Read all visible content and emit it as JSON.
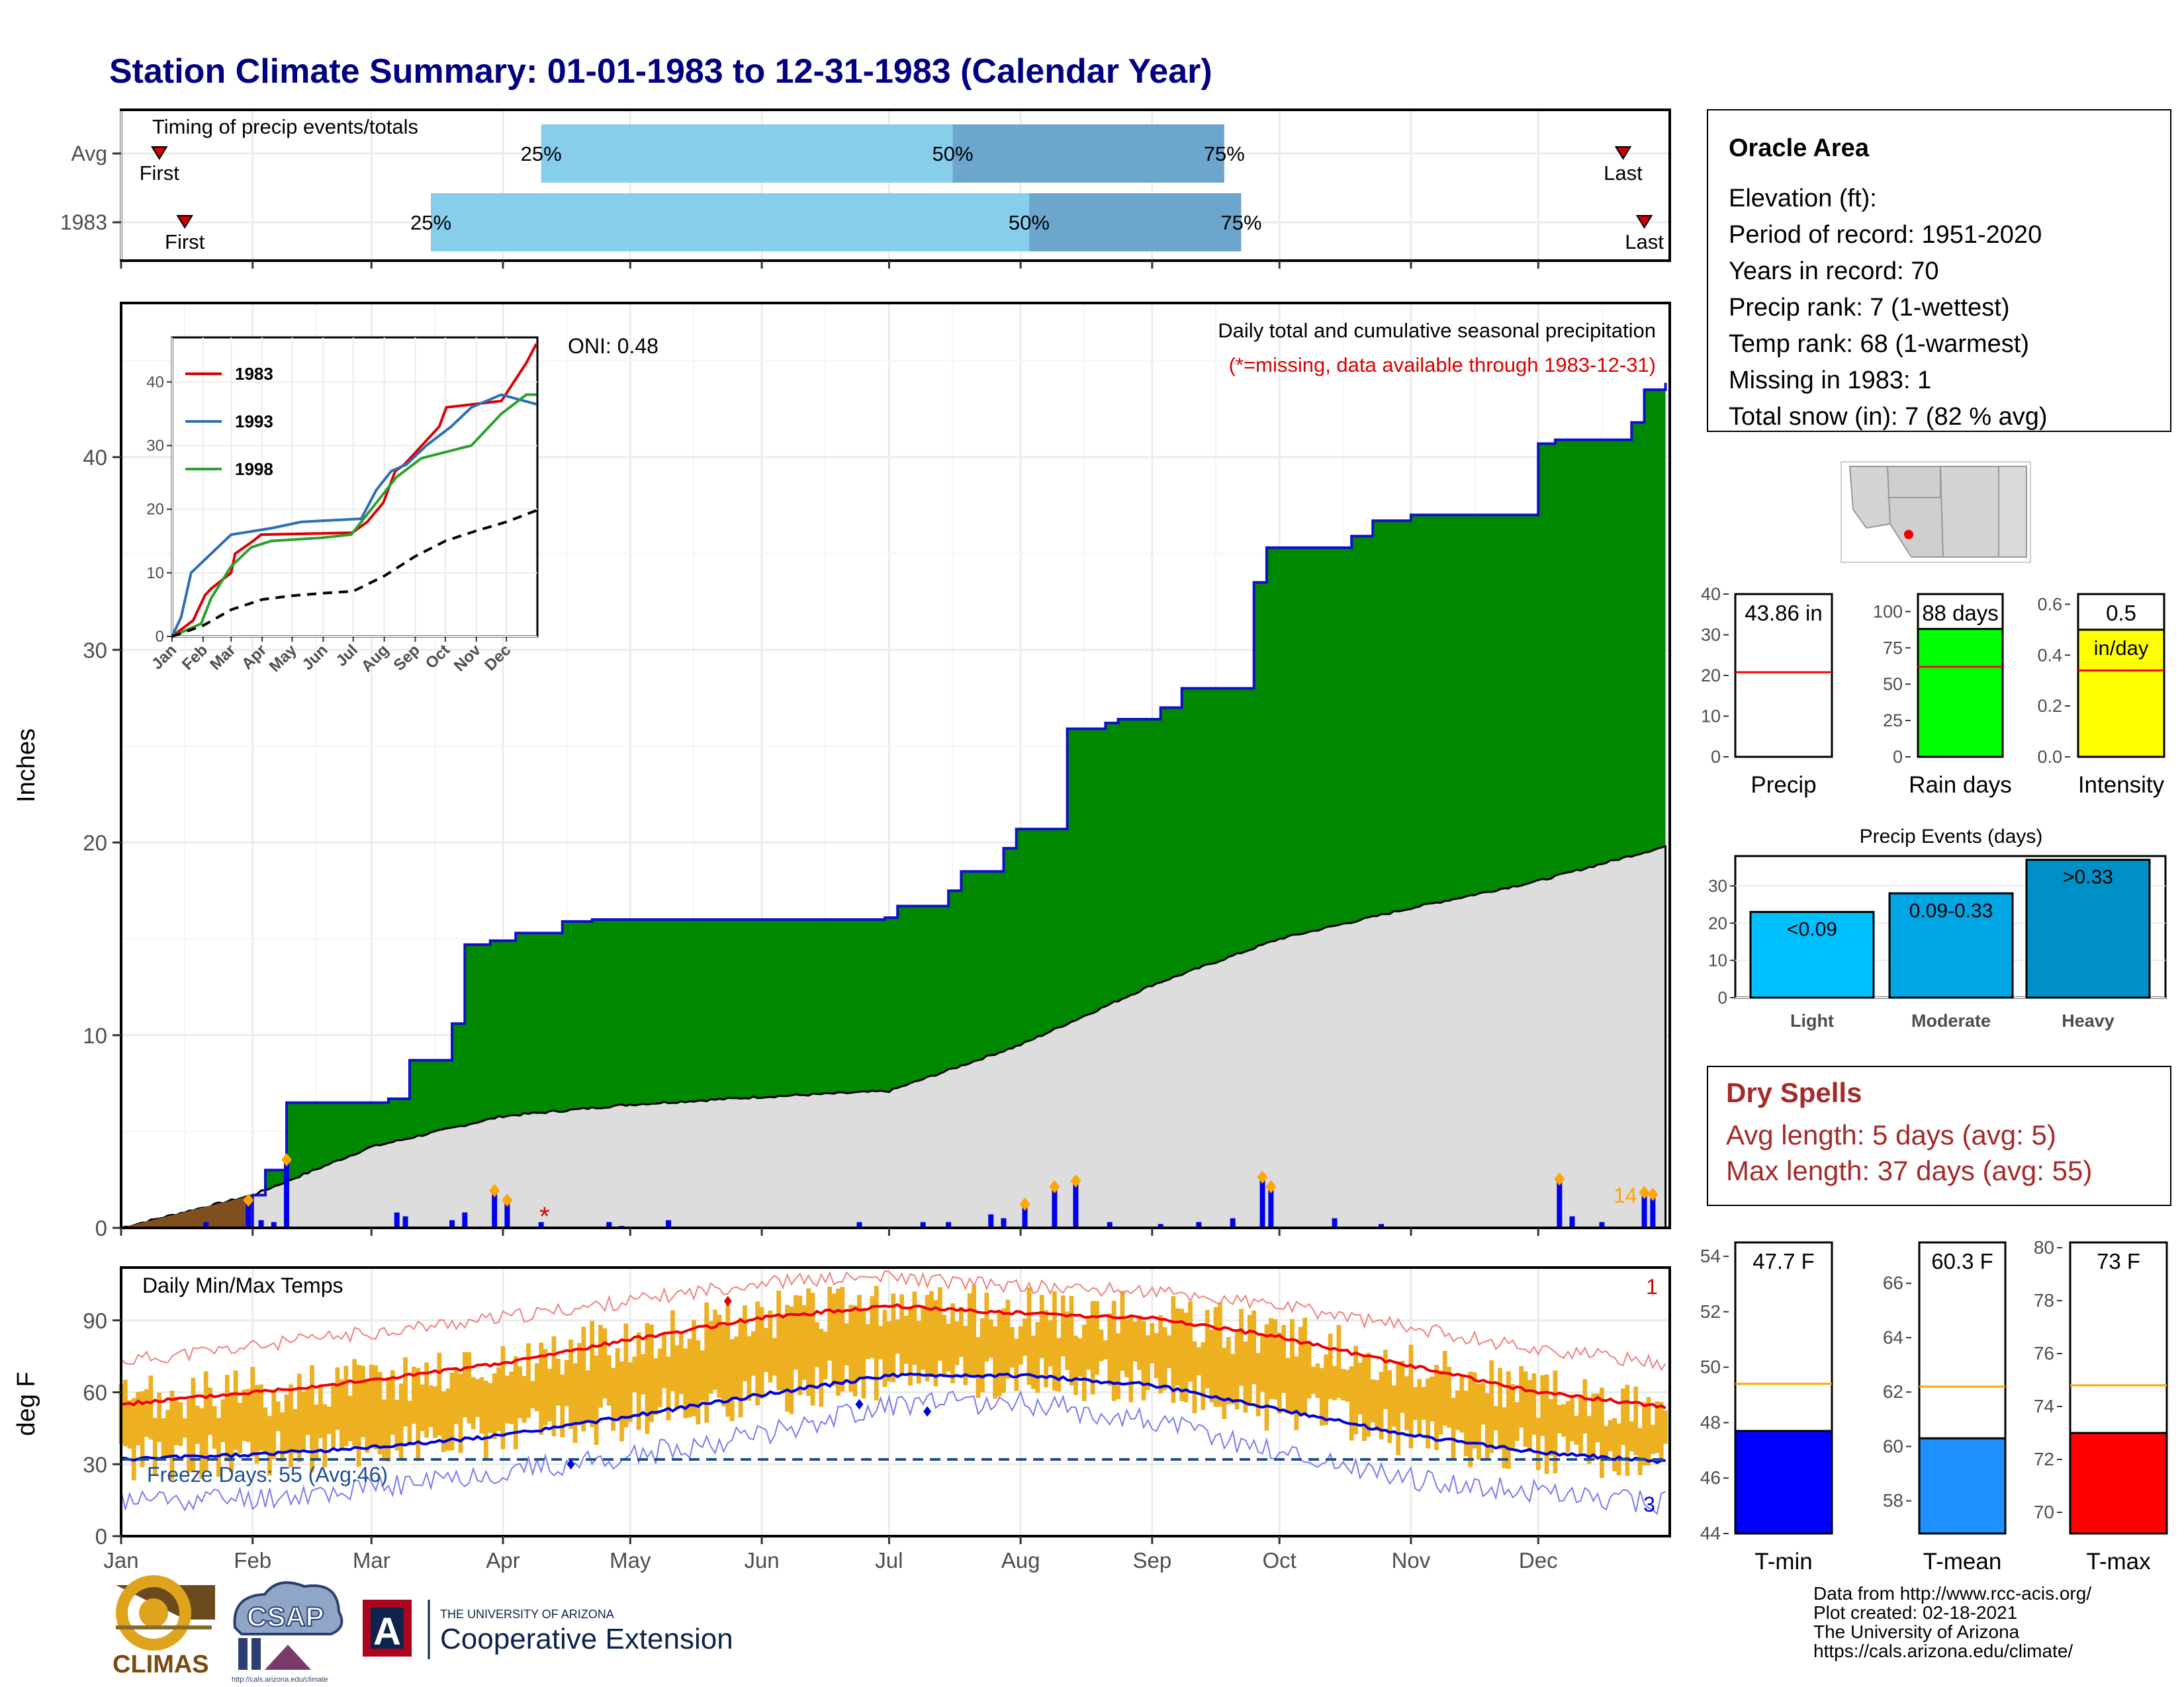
{
  "page": {
    "title": "Station Climate Summary: 01-01-1983 to 12-31-1983 (Calendar Year)",
    "title_color": "#000080"
  },
  "timing": {
    "title": "Timing of precip events/totals",
    "rows": [
      {
        "label": "Avg",
        "first_day": 10,
        "q25_day": 100,
        "q50_day": 197,
        "q75_day": 261,
        "last_day": 355,
        "first_label": "First",
        "last_label": "Last",
        "q25_label": "25%",
        "q50_label": "50%",
        "q75_label": "75%"
      },
      {
        "label": "1983",
        "first_day": 16,
        "q25_day": 74,
        "q50_day": 215,
        "q75_day": 265,
        "last_day": 360,
        "first_label": "First",
        "last_label": "Last",
        "q25_label": "25%",
        "q50_label": "50%",
        "q75_label": "75%"
      }
    ],
    "colors": {
      "light": "#87CEEB",
      "dark": "#6CA6CD",
      "marker": "#CC0000"
    }
  },
  "info": {
    "station": "Oracle Area",
    "lines": [
      "Elevation (ft):",
      "Period of record: 1951-2020",
      "Years in record: 70",
      "Precip rank: 7 (1-wettest)",
      "Temp rank: 68 (1-warmest)",
      "Missing in 1983: 1",
      "Total snow (in): 7 (82 % avg)"
    ]
  },
  "precip_panel": {
    "ylabel": "Inches",
    "oni": "ONI: 0.48",
    "note1": "Daily total and cumulative seasonal precipitation",
    "note2": "(*=missing, data available through 1983-12-31)",
    "count_label": "14",
    "missing_marker": "*",
    "colors": {
      "cum": "#008800",
      "avg": "#DDDDDD",
      "line": "#1010CC",
      "snow": "#7F4F1F",
      "daily": "#0000EE",
      "diamond": "#FFA500",
      "note2": "#DD0000"
    }
  },
  "inset": {
    "series": [
      {
        "name": "1983",
        "color": "#DD0000"
      },
      {
        "name": "1993",
        "color": "#2C6FB5"
      },
      {
        "name": "1998",
        "color": "#2CA02C"
      }
    ]
  },
  "temp_panel": {
    "ylabel": "deg F",
    "title": "Daily Min/Max Temps",
    "freeze": "Freeze Days: 55 (Avg:46)",
    "max_count": "1",
    "min_count": "3",
    "colors": {
      "bar": "#EDB021",
      "max": "#EE0000",
      "min": "#0000DD",
      "freeze_line": "#1F4F8F"
    }
  },
  "months": [
    "Jan",
    "Feb",
    "Mar",
    "Apr",
    "May",
    "Jun",
    "Jul",
    "Aug",
    "Sep",
    "Oct",
    "Nov",
    "Dec"
  ],
  "dry_spells": {
    "title": "Dry Spells",
    "line1": "Avg length: 5 days (avg: 5)",
    "line2": "Max length: 37 days (avg: 55)",
    "color": "#A52A2A"
  },
  "footer": {
    "credits": [
      "Data from http://www.rcc-acis.org/",
      "Plot created: 02-18-2021",
      "The University of Arizona",
      "https://cals.arizona.edu/climate/"
    ],
    "logo_climas": "CLIMAS",
    "logo_csap": "CSAP",
    "csap_url": "http://cals.arizona.edu/climate",
    "ua_small": "THE UNIVERSITY OF ARIZONA",
    "ua_big": "Cooperative Extension",
    "ua_letter": "A"
  },
  "chart_data": [
    {
      "type": "area",
      "title": "Daily total and cumulative seasonal precipitation",
      "ylabel": "Inches",
      "ylim": [
        0,
        48
      ],
      "yticks": [
        0,
        10,
        20,
        30,
        40
      ],
      "x_unit": "day of year",
      "series": [
        {
          "name": "1983 cumulative",
          "x": [
            1,
            32,
            35,
            40,
            64,
            69,
            79,
            82,
            88,
            94,
            105,
            112,
            181,
            184,
            196,
            199,
            209,
            212,
            224,
            233,
            236,
            246,
            251,
            268,
            271,
            291,
            296,
            305,
            335,
            339,
            357,
            360,
            365
          ],
          "values": [
            0,
            1.7,
            3.0,
            6.5,
            6.7,
            8.7,
            10.6,
            14.7,
            14.9,
            15.3,
            15.9,
            16.0,
            16.1,
            16.7,
            17.5,
            18.5,
            19.7,
            20.7,
            25.9,
            26.2,
            26.4,
            27.0,
            28.0,
            33.5,
            35.3,
            35.9,
            36.7,
            37.0,
            40.7,
            40.9,
            41.8,
            43.5,
            43.86
          ]
        },
        {
          "name": "Average cumulative",
          "x": [
            1,
            32,
            60,
            91,
            121,
            152,
            182,
            213,
            244,
            274,
            305,
            335,
            365
          ],
          "values": [
            0,
            1.7,
            4.2,
            5.8,
            6.4,
            6.8,
            7.1,
            9.5,
            12.6,
            15.0,
            16.6,
            18.0,
            19.8
          ]
        }
      ]
    },
    {
      "type": "bar",
      "title": "Daily precipitation (in)",
      "x": [
        21,
        31,
        34,
        37,
        40,
        66,
        68,
        79,
        82,
        89,
        92,
        100,
        116,
        119,
        130,
        175,
        190,
        196,
        206,
        209,
        214,
        221,
        226,
        234,
        246,
        255,
        263,
        270,
        272,
        287,
        298,
        340,
        343,
        350,
        360,
        362
      ],
      "values": [
        0.3,
        1.3,
        0.4,
        0.3,
        3.4,
        0.8,
        0.6,
        0.4,
        0.8,
        1.8,
        1.3,
        0.3,
        0.3,
        0.1,
        0.4,
        0.3,
        0.3,
        0.3,
        0.7,
        0.5,
        1.1,
        2.0,
        2.3,
        0.3,
        0.2,
        0.3,
        0.5,
        2.5,
        2.0,
        0.5,
        0.2,
        2.4,
        0.6,
        0.3,
        1.7,
        1.6
      ]
    },
    {
      "type": "line",
      "title": "Cumulative precipitation comparison",
      "ylim": [
        0,
        47
      ],
      "yticks": [
        0,
        10,
        20,
        30,
        40
      ],
      "categories": [
        "Jan",
        "Feb",
        "Mar",
        "Apr",
        "May",
        "Jun",
        "Jul",
        "Aug",
        "Sep",
        "Oct",
        "Nov",
        "Dec"
      ],
      "series": [
        {
          "name": "1983",
          "x": [
            1,
            22,
            34,
            40,
            60,
            64,
            82,
            90,
            181,
            196,
            212,
            224,
            233,
            268,
            275,
            330,
            355,
            365
          ],
          "values": [
            0,
            2.5,
            6.5,
            7.5,
            10,
            13,
            15,
            16,
            16.3,
            18,
            21,
            26,
            27,
            33,
            36,
            37,
            43,
            46
          ]
        },
        {
          "name": "1993",
          "x": [
            1,
            10,
            20,
            40,
            60,
            80,
            100,
            130,
            190,
            205,
            220,
            235,
            255,
            280,
            300,
            330,
            365
          ],
          "values": [
            0,
            3,
            10,
            13,
            16,
            16.5,
            17,
            18,
            18.5,
            23,
            26,
            27,
            30,
            33,
            36,
            38,
            36.5
          ]
        },
        {
          "name": "1998",
          "x": [
            1,
            30,
            40,
            60,
            80,
            100,
            150,
            180,
            195,
            210,
            225,
            250,
            275,
            300,
            330,
            355,
            365
          ],
          "values": [
            0,
            2,
            6,
            11,
            14,
            15,
            15.5,
            16,
            19,
            22,
            25,
            28,
            29,
            30,
            35,
            38,
            38
          ]
        },
        {
          "name": "Average",
          "x": [
            1,
            32,
            60,
            91,
            121,
            152,
            182,
            213,
            244,
            274,
            305,
            335,
            365
          ],
          "values": [
            0,
            1.7,
            4.2,
            5.8,
            6.4,
            6.8,
            7.1,
            9.5,
            12.6,
            15.0,
            16.6,
            18.0,
            19.8
          ]
        }
      ]
    },
    {
      "type": "line",
      "title": "Daily Min/Max Temps",
      "ylabel": "deg F",
      "ylim": [
        0,
        112
      ],
      "yticks": [
        0,
        30,
        60,
        90
      ],
      "series": [
        {
          "name": "Avg max",
          "x": [
            1,
            32,
            60,
            91,
            121,
            152,
            182,
            213,
            244,
            274,
            305,
            335,
            365
          ],
          "values": [
            55,
            60,
            65,
            72,
            82,
            91,
            96,
            93,
            91,
            83,
            71,
            60,
            54
          ]
        },
        {
          "name": "Avg min",
          "x": [
            1,
            32,
            60,
            91,
            121,
            152,
            182,
            213,
            244,
            274,
            305,
            335,
            365
          ],
          "values": [
            32,
            34,
            37,
            42,
            50,
            59,
            67,
            67,
            63,
            53,
            42,
            35,
            31
          ]
        },
        {
          "name": "Record max",
          "x": [
            1,
            32,
            60,
            91,
            121,
            152,
            182,
            213,
            244,
            274,
            305,
            335,
            365
          ],
          "values": [
            73,
            79,
            85,
            91,
            98,
            106,
            108,
            104,
            102,
            96,
            87,
            78,
            72
          ]
        },
        {
          "name": "Record min",
          "x": [
            1,
            32,
            60,
            91,
            121,
            152,
            182,
            213,
            244,
            274,
            305,
            335,
            365
          ],
          "values": [
            15,
            16,
            20,
            27,
            33,
            43,
            55,
            56,
            48,
            35,
            24,
            18,
            14
          ]
        },
        {
          "name": "Freeze line",
          "x": [
            1,
            365
          ],
          "values": [
            32,
            32
          ]
        }
      ]
    },
    {
      "type": "bar",
      "title": "Precip",
      "ylim": [
        0,
        40
      ],
      "yticks": [
        0,
        10,
        20,
        30,
        40
      ],
      "value": 43.86,
      "avg": 20.8,
      "label": "43.86 in",
      "color": "#FFFFFF"
    },
    {
      "type": "bar",
      "title": "Rain days",
      "ylim": [
        0,
        112
      ],
      "yticks": [
        0,
        25,
        50,
        75,
        100
      ],
      "value": 88,
      "avg": 62,
      "label": "88 days",
      "color": "#00FF00"
    },
    {
      "type": "bar",
      "title": "Intensity",
      "ylim": [
        0,
        0.64
      ],
      "yticks": [
        0.0,
        0.2,
        0.4,
        0.6
      ],
      "value": 0.5,
      "avg": 0.34,
      "label": "0.5",
      "sublabel": "in/day",
      "color": "#FFFF00"
    },
    {
      "type": "bar",
      "title": "Precip Events (days)",
      "categories": [
        "Light",
        "Moderate",
        "Heavy"
      ],
      "values": [
        23,
        28,
        37
      ],
      "ylim": [
        0,
        38
      ],
      "yticks": [
        0,
        10,
        20,
        30
      ],
      "labels": [
        "<0.09",
        "0.09-0.33",
        ">0.33"
      ],
      "colors": [
        "#00BFFF",
        "#00A5E3",
        "#0090C8"
      ]
    },
    {
      "type": "bar",
      "title": "T-min",
      "ylim": [
        44,
        54.5
      ],
      "yticks": [
        44,
        46,
        48,
        50,
        52,
        54
      ],
      "value": 47.7,
      "avg": 49.4,
      "label": "47.7 F",
      "color": "#0000FF"
    },
    {
      "type": "bar",
      "title": "T-mean",
      "ylim": [
        56.8,
        67.5
      ],
      "yticks": [
        58,
        60,
        62,
        64,
        66
      ],
      "value": 60.3,
      "avg": 62.2,
      "label": "60.3 F",
      "color": "#1E90FF"
    },
    {
      "type": "bar",
      "title": "T-max",
      "ylim": [
        69.2,
        80.2
      ],
      "yticks": [
        70,
        72,
        74,
        76,
        78,
        80
      ],
      "value": 73,
      "avg": 74.8,
      "label": "73 F",
      "color": "#FF0000"
    }
  ]
}
